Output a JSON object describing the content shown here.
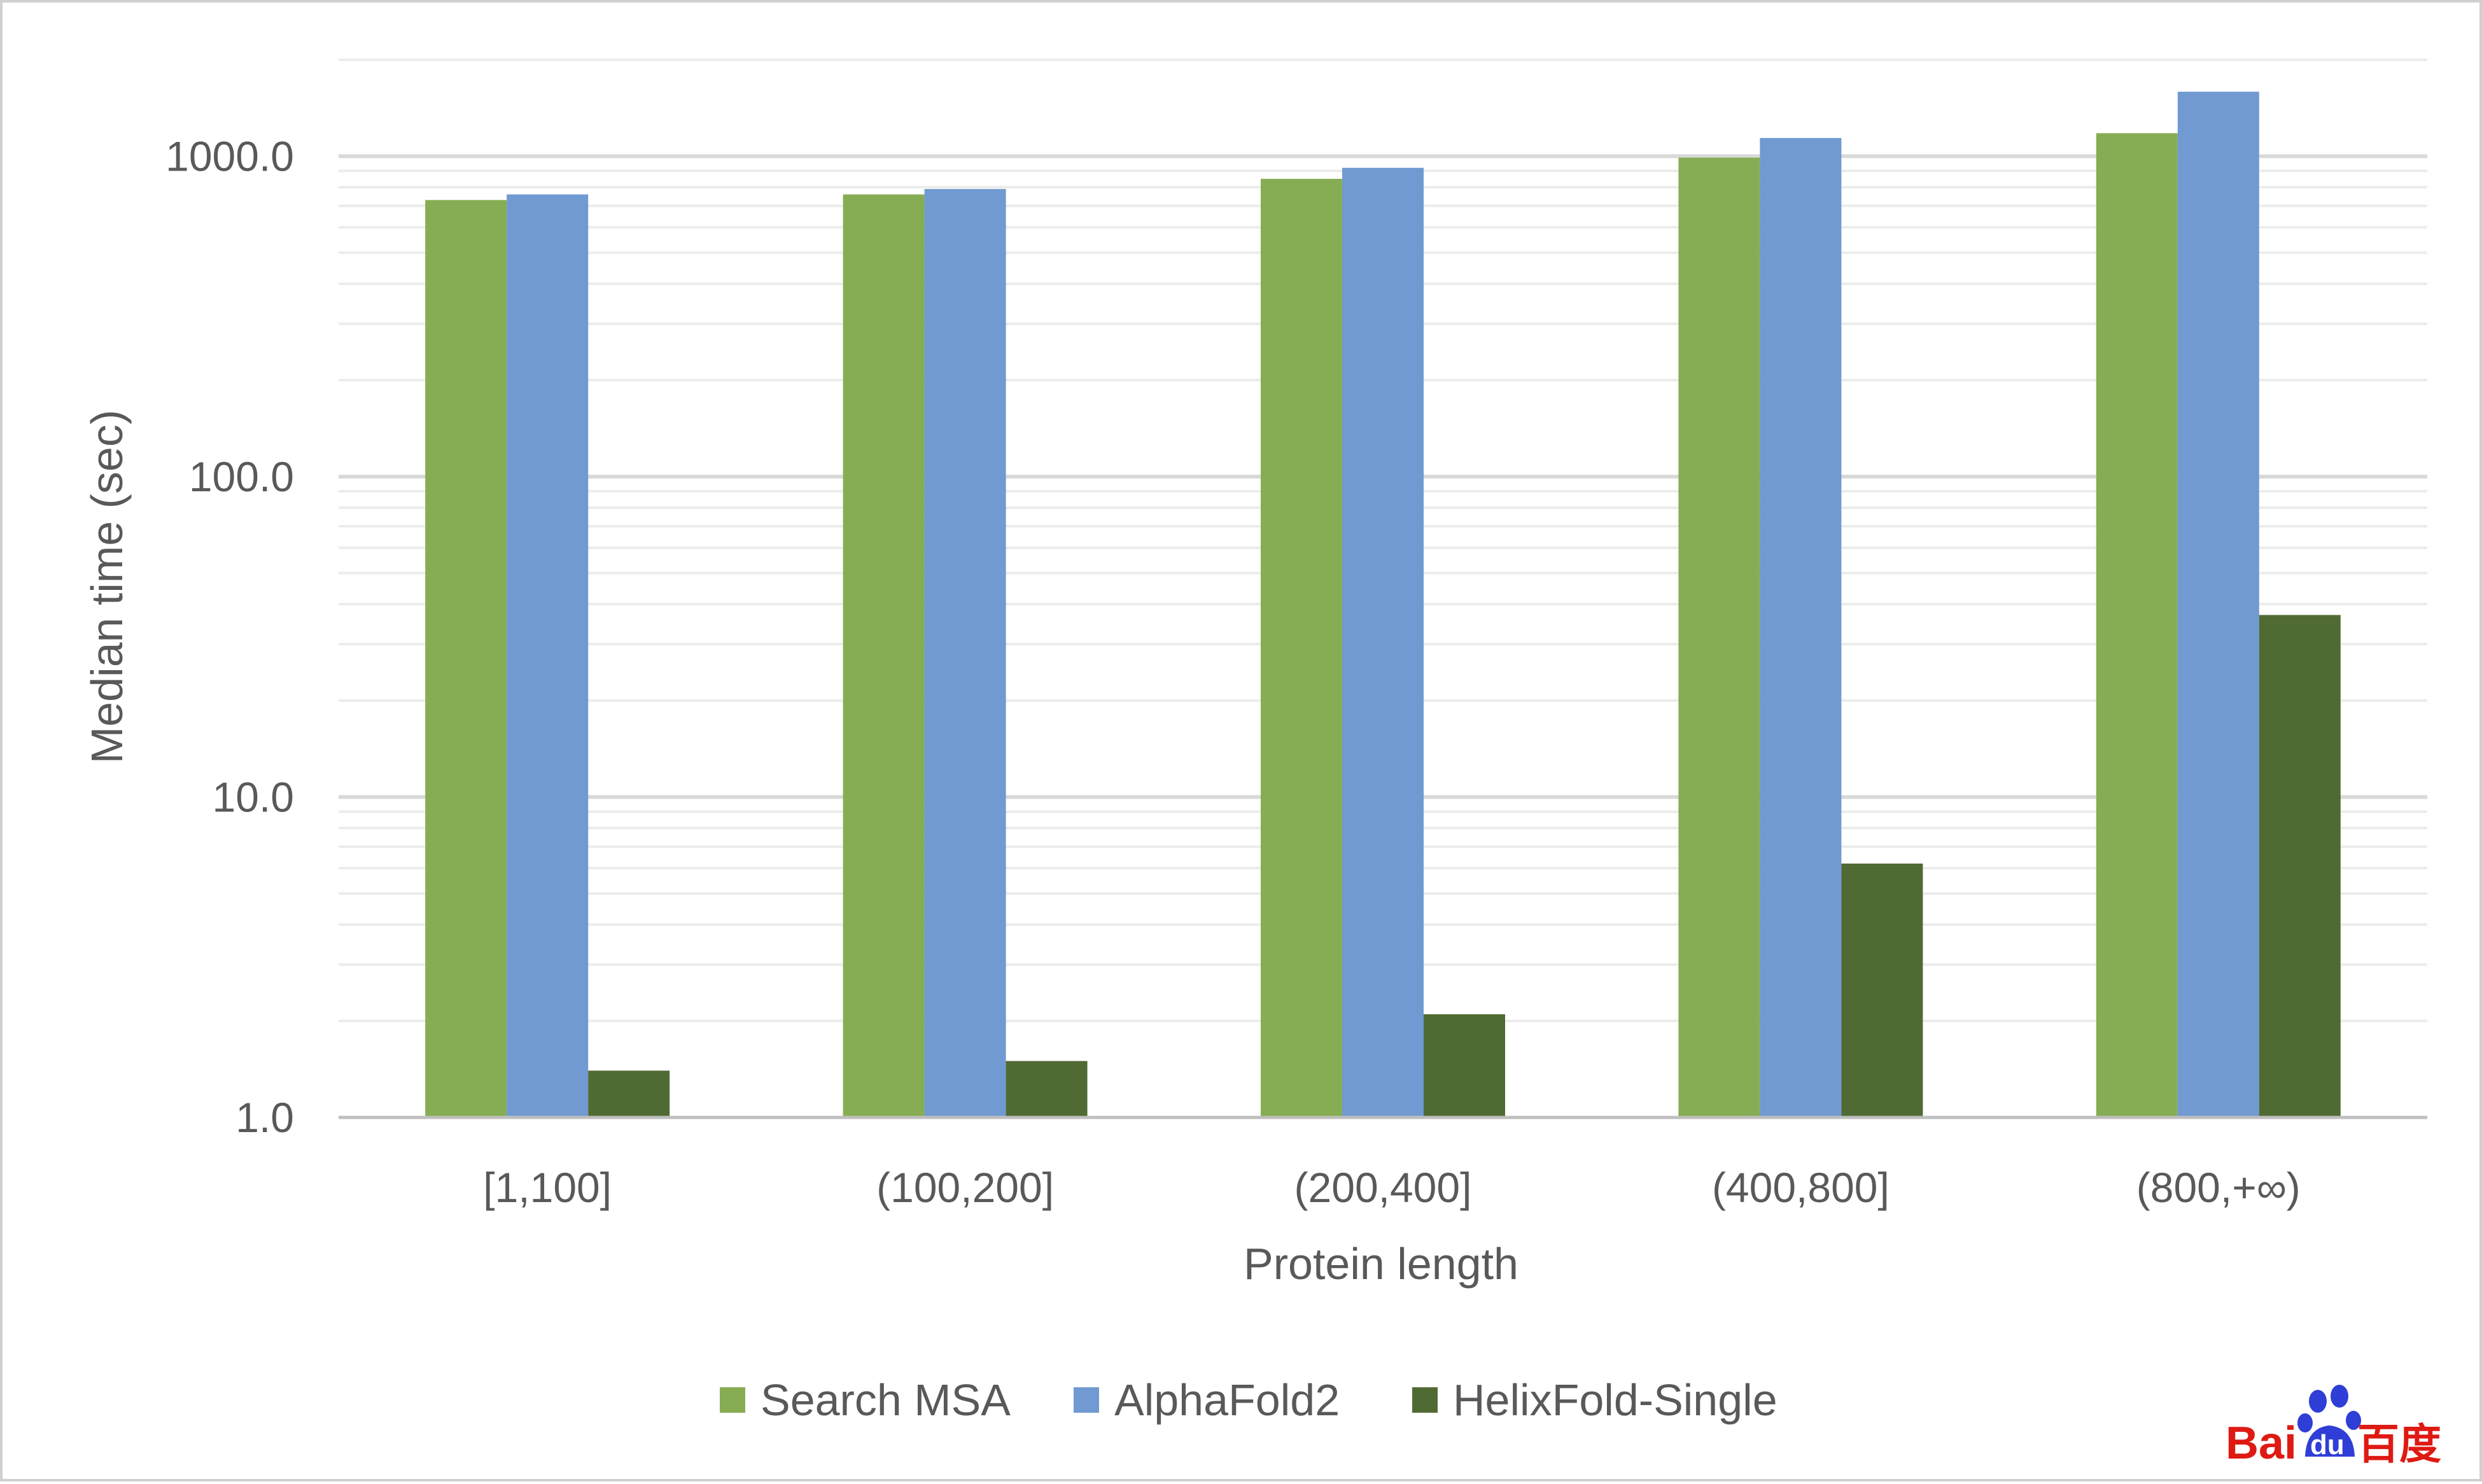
{
  "chart_data": {
    "type": "bar",
    "title": "",
    "xlabel": "Protein length",
    "ylabel": "Median time (sec)",
    "yscale": "log",
    "ylim": [
      1,
      2000
    ],
    "yticks": [
      1,
      10,
      100,
      1000
    ],
    "ytick_labels": [
      "1.0",
      "10.0",
      "100.0",
      "1000.0"
    ],
    "grid": true,
    "legend_position": "bottom",
    "categories": [
      "[1,100]",
      "(100,200]",
      "(200,400]",
      "(400,800]",
      "(800,+∞)"
    ],
    "series": [
      {
        "name": "Search MSA",
        "color": "#86AD53",
        "values": [
          730,
          760,
          850,
          990,
          1180
        ]
      },
      {
        "name": "AlphaFold2",
        "color": "#709AD1",
        "values": [
          760,
          790,
          920,
          1140,
          1590
        ]
      },
      {
        "name": "HelixFold-Single",
        "color": "#506A33",
        "values": [
          1.4,
          1.5,
          2.1,
          6.2,
          37
        ]
      }
    ]
  },
  "logo": {
    "text_left": "Bai",
    "text_mid": "du",
    "text_right": "百度",
    "color_red": "#DE1A13",
    "color_blue": "#2F3ED6"
  }
}
